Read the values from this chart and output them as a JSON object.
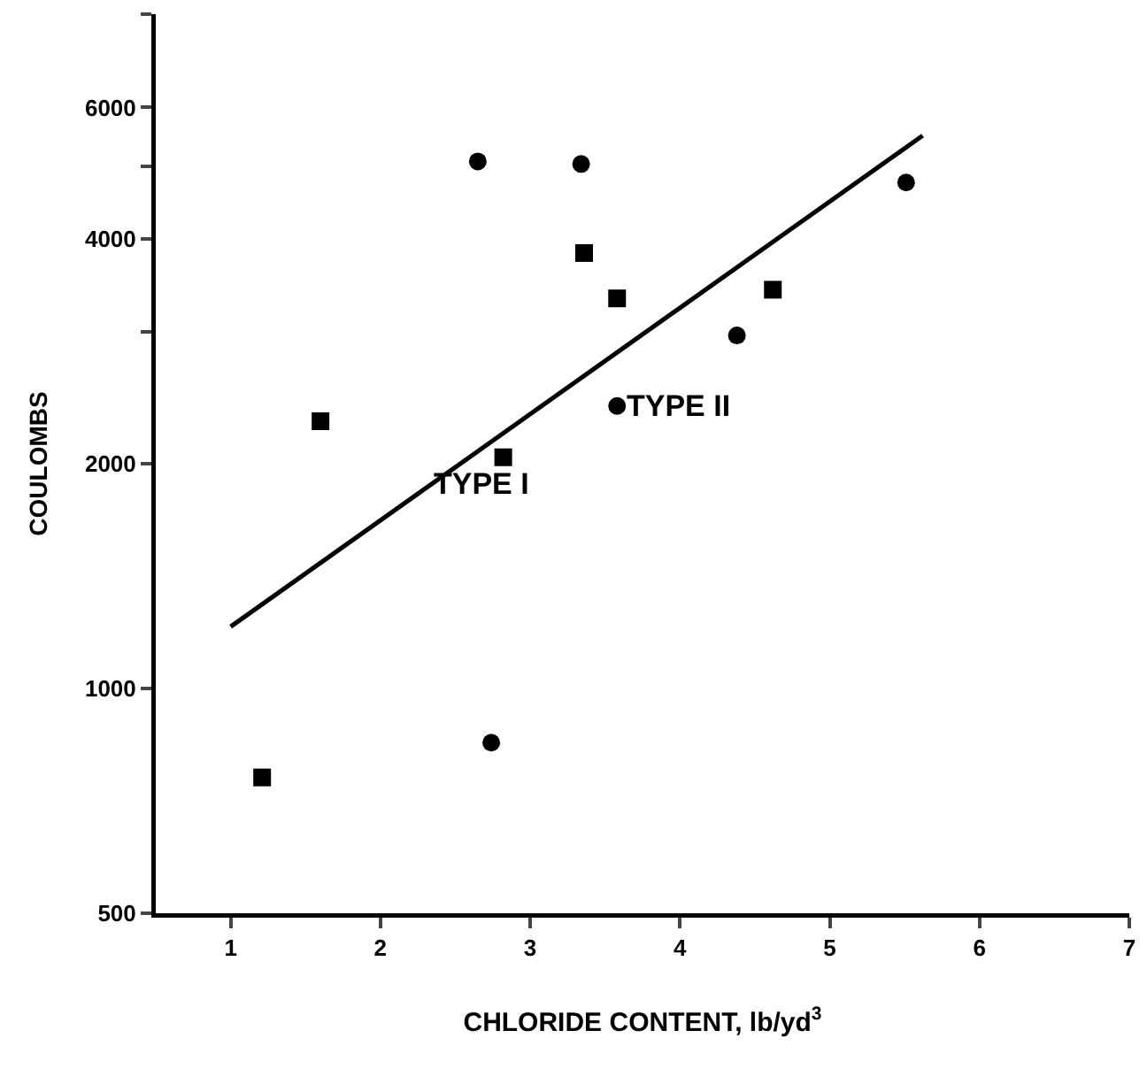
{
  "chart_data": {
    "type": "scatter",
    "xlabel": "CHLORIDE CONTENT, lb/yd$^{3}$",
    "ylabel": "COULOMBS",
    "log": "y",
    "xlim": [
      0.5,
      7
    ],
    "xticks": [
      1,
      2,
      3,
      4,
      5,
      6,
      7
    ],
    "ylim": [
      500,
      8000
    ],
    "yticks": [
      500,
      1000,
      2000,
      {
        "value": 3000,
        "label": null
      },
      4000,
      {
        "value": 5000,
        "label": null
      },
      6000,
      {
        "value": 8000,
        "label": null
      }
    ],
    "grid": false,
    "series": [
      {
        "marker": "square",
        "color": "#000000",
        "x": [
          1.21,
          1.6,
          2.82,
          3.36,
          3.58,
          4.62
        ],
        "values": [
          760,
          2280,
          2040,
          3830,
          3330,
          3420
        ]
      },
      {
        "marker": "circle",
        "color": "#000000",
        "x": [
          2.65,
          3.34,
          5.51,
          4.38,
          3.58,
          2.74
        ],
        "values": [
          5080,
          5040,
          4760,
          2970,
          2390,
          846
        ]
      },
      {
        "type": "line",
        "line_style": "solid",
        "color": "#000000",
        "x": [
          1.0,
          5.62
        ],
        "values": [
          1210,
          5500
        ]
      }
    ],
    "annotations": [
      {
        "text": "TYPE I",
        "x": 2.82,
        "y": 2040
      },
      {
        "text": "TYPE II",
        "x": 3.58,
        "y": 2390
      }
    ]
  }
}
